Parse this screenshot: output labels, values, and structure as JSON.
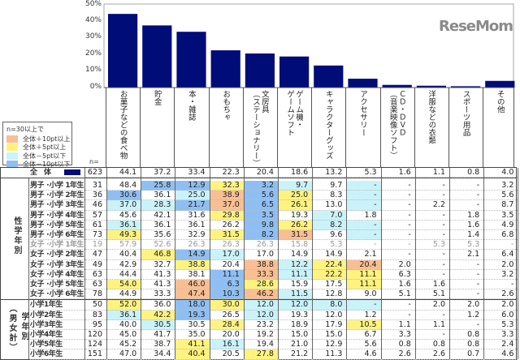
{
  "chart_data": {
    "type": "bar",
    "ylim": [
      0,
      50
    ],
    "yticks": [
      "0%",
      "10%",
      "20%",
      "30%",
      "40%",
      "50%"
    ],
    "bar_color": "#000c78",
    "categories": [
      [
        "お菓子などの食べ物"
      ],
      [
        "貯金"
      ],
      [
        "本・雑誌"
      ],
      [
        "おもちゃ"
      ],
      [
        "文房具",
        "（ステーショナリー）"
      ],
      [
        "ゲーム機・",
        "ゲームソフト"
      ],
      [
        "キャラクターグッズ"
      ],
      [
        "アクセサリー"
      ],
      [
        "ＣＤ・ＤＶＤ",
        "（音楽映像ソフト）"
      ],
      [
        "洋服などの衣類"
      ],
      [
        "スポーツ用品"
      ],
      [
        "その他"
      ]
    ],
    "values": [
      44.1,
      37.2,
      33.4,
      22.3,
      20.4,
      18.6,
      13.2,
      5.3,
      1.6,
      1.1,
      0.8,
      4.0
    ]
  },
  "legend": {
    "title": "n=30以上で",
    "items": [
      {
        "label": "全体＋10pt以上",
        "color": "#f9bf92"
      },
      {
        "label": "全体＋5pt以上",
        "color": "#fff37f"
      },
      {
        "label": "全体－5pt以下",
        "color": "#c9f3f9"
      },
      {
        "label": "全体－10pt以下",
        "color": "#8fbff2"
      }
    ]
  },
  "n_label": "n=",
  "groups": {
    "gender_grade": "性学年別",
    "grade_a": "学年別",
    "grade_b": "（男女計）"
  },
  "total": {
    "label": "全　体",
    "n": "623",
    "values": [
      "44.1",
      "37.2",
      "33.4",
      "22.3",
      "20.4",
      "18.6",
      "13.2",
      "5.3",
      "1.6",
      "1.1",
      "0.8",
      "4.0"
    ]
  },
  "rows": [
    {
      "label": "男子 ･小学 1年生",
      "n": "31",
      "values": [
        "48.4",
        "25.8",
        "12.9",
        "32.3",
        "3.2",
        "9.7",
        "9.7",
        "-",
        "-",
        "-",
        "-",
        "3.2"
      ]
    },
    {
      "label": "男子 ･小学 2年生",
      "n": "36",
      "values": [
        "30.6",
        "36.1",
        "25.0",
        "38.9",
        "5.6",
        "25.0",
        "8.3",
        "-",
        "-",
        "-",
        "-",
        "5.6"
      ]
    },
    {
      "label": "男子 ･小学 3年生",
      "n": "46",
      "values": [
        "37.0",
        "28.3",
        "21.7",
        "37.0",
        "6.5",
        "26.1",
        "13.0",
        "-",
        "-",
        "2.2",
        "-",
        "8.7"
      ]
    },
    {
      "label": "男子 ･小学 4年生",
      "n": "57",
      "values": [
        "45.6",
        "42.1",
        "31.6",
        "29.8",
        "3.5",
        "19.3",
        "7.0",
        "1.8",
        "-",
        "-",
        "1.8",
        "3.5"
      ]
    },
    {
      "label": "男子 ･小学 5年生",
      "n": "61",
      "values": [
        "36.1",
        "36.1",
        "36.1",
        "26.2",
        "9.8",
        "26.2",
        "8.2",
        "-",
        "-",
        "-",
        "1.6",
        "4.9"
      ]
    },
    {
      "label": "男子 ･小学 6年生",
      "n": "73",
      "values": [
        "49.3",
        "35.6",
        "32.9",
        "31.5",
        "8.2",
        "31.5",
        "9.6",
        "-",
        "-",
        "-",
        "1.4",
        "6.8"
      ]
    },
    {
      "label": "女子 ･小学 1年生",
      "n": "19",
      "small": true,
      "values": [
        "57.9",
        "52.6",
        "26.3",
        "26.3",
        "26.3",
        "15.8",
        "5.3",
        "-",
        "-",
        "5.3",
        "5.3",
        "-"
      ]
    },
    {
      "label": "女子 ･小学 2年生",
      "n": "47",
      "values": [
        "40.4",
        "46.8",
        "14.9",
        "17.0",
        "17.0",
        "14.9",
        "14.9",
        "2.1",
        "-",
        "-",
        "2.1",
        "6.4"
      ]
    },
    {
      "label": "女子 ･小学 3年生",
      "n": "49",
      "values": [
        "42.9",
        "32.7",
        "38.8",
        "20.4",
        "38.8",
        "12.2",
        "22.4",
        "20.4",
        "2.0",
        "-",
        "-",
        "2.0"
      ]
    },
    {
      "label": "女子 ･小学 4年生",
      "n": "63",
      "values": [
        "44.4",
        "41.3",
        "38.1",
        "11.1",
        "33.3",
        "11.1",
        "22.2",
        "11.1",
        "6.3",
        "-",
        "-",
        "3.2"
      ]
    },
    {
      "label": "女子 ･小学 5年生",
      "n": "63",
      "values": [
        "54.0",
        "41.3",
        "46.0",
        "6.3",
        "28.6",
        "15.9",
        "17.5",
        "11.1",
        "1.6",
        "1.6",
        "-",
        "-"
      ]
    },
    {
      "label": "女子 ･小学 6年生",
      "n": "78",
      "values": [
        "44.9",
        "33.3",
        "47.4",
        "10.3",
        "46.2",
        "11.5",
        "12.8",
        "9.0",
        "5.1",
        "5.1",
        "-",
        "2.6"
      ]
    },
    {
      "label": "小学1年生",
      "n": "50",
      "values": [
        "52.0",
        "36.0",
        "18.0",
        "30.0",
        "12.0",
        "12.0",
        "8.0",
        "-",
        "-",
        "2.0",
        "2.0",
        "2.0"
      ]
    },
    {
      "label": "小学2年生",
      "n": "83",
      "values": [
        "36.1",
        "42.2",
        "19.3",
        "26.5",
        "12.0",
        "19.3",
        "12.0",
        "1.2",
        "-",
        "-",
        "1.2",
        "6.0"
      ]
    },
    {
      "label": "小学3年生",
      "n": "95",
      "values": [
        "40.0",
        "30.5",
        "30.5",
        "28.4",
        "23.2",
        "18.9",
        "17.9",
        "10.5",
        "1.1",
        "1.1",
        "-",
        "5.3"
      ]
    },
    {
      "label": "小学4年生",
      "n": "120",
      "values": [
        "45.0",
        "41.7",
        "35.0",
        "20.0",
        "19.2",
        "15.0",
        "15.0",
        "6.7",
        "3.3",
        "-",
        "0.8",
        "3.3"
      ]
    },
    {
      "label": "小学5年生",
      "n": "124",
      "values": [
        "45.2",
        "38.7",
        "41.1",
        "16.1",
        "19.4",
        "21.0",
        "12.9",
        "5.6",
        "0.8",
        "0.8",
        "0.8",
        "2.4"
      ]
    },
    {
      "label": "小学6年生",
      "n": "151",
      "values": [
        "47.0",
        "34.4",
        "40.4",
        "20.5",
        "27.8",
        "21.2",
        "11.3",
        "4.6",
        "2.6",
        "2.6",
        "0.7",
        "4.6"
      ]
    }
  ],
  "watermark": "ReseMom"
}
